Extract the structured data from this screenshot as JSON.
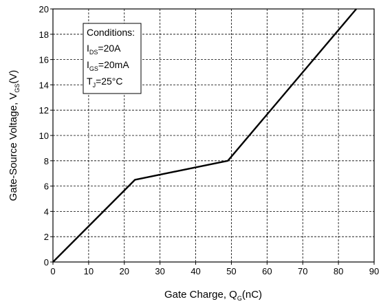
{
  "chart_data": {
    "type": "line",
    "title": "",
    "xlabel": {
      "main": "Gate Charge, Q",
      "sub": "G",
      "unit": "(nC)"
    },
    "ylabel": {
      "main": "Gate-Source Voltage, V",
      "sub": "GS",
      "unit": "(V)"
    },
    "xlim": [
      0,
      90
    ],
    "ylim": [
      0,
      20
    ],
    "xticks": [
      0,
      10,
      20,
      30,
      40,
      50,
      60,
      70,
      80,
      90
    ],
    "yticks": [
      0,
      2,
      4,
      6,
      8,
      10,
      12,
      14,
      16,
      18,
      20
    ],
    "grid": true,
    "grid_style": "dashed",
    "line_color": "#000000",
    "series": [
      {
        "x": [
          0,
          23,
          49,
          85
        ],
        "y": [
          0,
          6.5,
          8.0,
          20.0
        ]
      }
    ],
    "annotation": {
      "title": "Conditions:",
      "lines": [
        {
          "main": "I",
          "sub": "DS",
          "rest": "=20A"
        },
        {
          "main": "I",
          "sub": "GS",
          "rest": "=20mA"
        },
        {
          "main": "T",
          "sub": "J",
          "rest": "=25°C"
        }
      ],
      "placement": "top-left"
    }
  }
}
